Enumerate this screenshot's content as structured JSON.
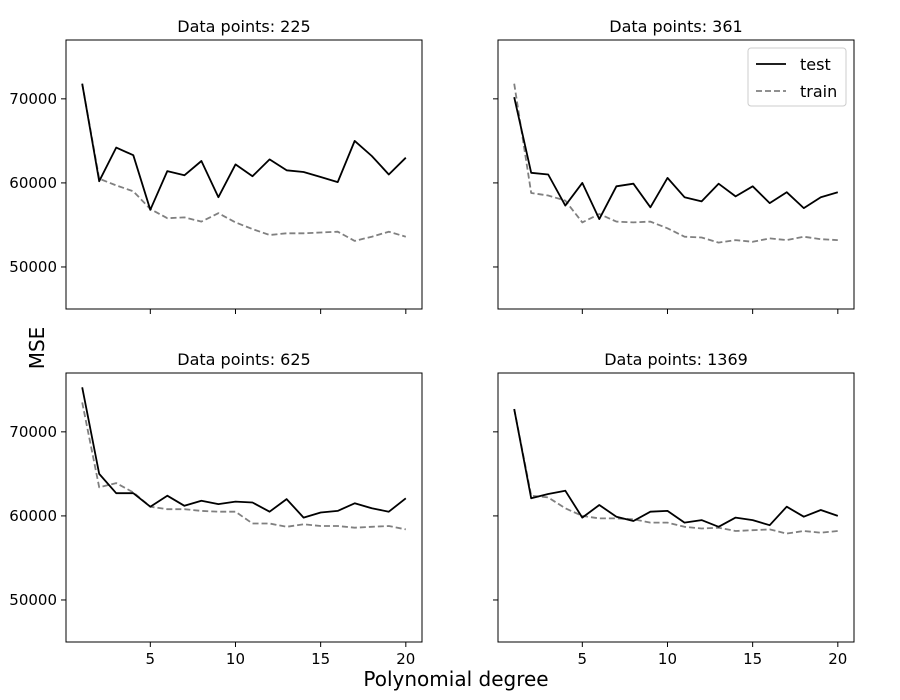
{
  "figure": {
    "xlabel": "Polynomial degree",
    "ylabel": "MSE"
  },
  "chart_data": [
    {
      "type": "line",
      "title": "Data points: 225",
      "x": [
        1,
        2,
        3,
        4,
        5,
        6,
        7,
        8,
        9,
        10,
        11,
        12,
        13,
        14,
        15,
        16,
        17,
        18,
        19,
        20
      ],
      "series": [
        {
          "name": "test",
          "color": "#000000",
          "dash": "solid",
          "values": [
            71800,
            60200,
            64200,
            63300,
            56800,
            61400,
            60900,
            62600,
            58300,
            62200,
            60800,
            62800,
            61500,
            61300,
            60700,
            60100,
            65000,
            63200,
            61000,
            63000
          ]
        },
        {
          "name": "train",
          "color": "#808080",
          "dash": "dashed",
          "values": [
            71800,
            60500,
            59700,
            59000,
            56900,
            55800,
            55900,
            55400,
            56400,
            55300,
            54500,
            53800,
            54000,
            54000,
            54100,
            54200,
            53100,
            53600,
            54200,
            53600
          ]
        }
      ],
      "xlim": [
        0.05,
        20.95
      ],
      "ylim": [
        45000,
        77000
      ],
      "xticks": [
        5,
        10,
        15,
        20
      ],
      "yticks": [
        50000,
        60000,
        70000
      ],
      "show_xticklabels": false,
      "show_yticklabels": true,
      "legend": null
    },
    {
      "type": "line",
      "title": "Data points: 361",
      "x": [
        1,
        2,
        3,
        4,
        5,
        6,
        7,
        8,
        9,
        10,
        11,
        12,
        13,
        14,
        15,
        16,
        17,
        18,
        19,
        20
      ],
      "series": [
        {
          "name": "test",
          "color": "#000000",
          "dash": "solid",
          "values": [
            70200,
            61200,
            61000,
            57300,
            60000,
            55700,
            59600,
            59900,
            57100,
            60600,
            58300,
            57800,
            59900,
            58400,
            59600,
            57600,
            58900,
            57000,
            58300,
            58900
          ]
        },
        {
          "name": "train",
          "color": "#808080",
          "dash": "dashed",
          "values": [
            71800,
            58800,
            58500,
            57900,
            55300,
            56300,
            55400,
            55300,
            55400,
            54600,
            53600,
            53500,
            52900,
            53200,
            53000,
            53400,
            53200,
            53600,
            53300,
            53200
          ]
        }
      ],
      "xlim": [
        0.05,
        20.95
      ],
      "ylim": [
        45000,
        77000
      ],
      "xticks": [
        5,
        10,
        15,
        20
      ],
      "yticks": [
        50000,
        60000,
        70000
      ],
      "show_xticklabels": false,
      "show_yticklabels": false,
      "legend": "top-right"
    },
    {
      "type": "line",
      "title": "Data points: 625",
      "x": [
        1,
        2,
        3,
        4,
        5,
        6,
        7,
        8,
        9,
        10,
        11,
        12,
        13,
        14,
        15,
        16,
        17,
        18,
        19,
        20
      ],
      "series": [
        {
          "name": "test",
          "color": "#000000",
          "dash": "solid",
          "values": [
            75300,
            65000,
            62700,
            62700,
            61100,
            62400,
            61200,
            61800,
            61400,
            61700,
            61600,
            60500,
            62000,
            59800,
            60400,
            60600,
            61500,
            60900,
            60500,
            62100
          ]
        },
        {
          "name": "train",
          "color": "#808080",
          "dash": "dashed",
          "values": [
            73500,
            63400,
            63900,
            62800,
            61100,
            60800,
            60800,
            60600,
            60500,
            60500,
            59100,
            59100,
            58700,
            59000,
            58800,
            58800,
            58600,
            58700,
            58800,
            58400
          ]
        }
      ],
      "xlim": [
        0.05,
        20.95
      ],
      "ylim": [
        45000,
        77000
      ],
      "xticks": [
        5,
        10,
        15,
        20
      ],
      "yticks": [
        50000,
        60000,
        70000
      ],
      "show_xticklabels": true,
      "show_yticklabels": true,
      "legend": null
    },
    {
      "type": "line",
      "title": "Data points: 1369",
      "x": [
        1,
        2,
        3,
        4,
        5,
        6,
        7,
        8,
        9,
        10,
        11,
        12,
        13,
        14,
        15,
        16,
        17,
        18,
        19,
        20
      ],
      "series": [
        {
          "name": "test",
          "color": "#000000",
          "dash": "solid",
          "values": [
            72700,
            62100,
            62600,
            63000,
            59800,
            61300,
            59900,
            59400,
            60500,
            60600,
            59200,
            59500,
            58700,
            59800,
            59500,
            58900,
            61100,
            59900,
            60700,
            60000
          ]
        },
        {
          "name": "train",
          "color": "#808080",
          "dash": "dashed",
          "values": [
            72700,
            62400,
            62200,
            60900,
            60000,
            59700,
            59700,
            59600,
            59200,
            59200,
            58700,
            58500,
            58600,
            58200,
            58300,
            58400,
            57900,
            58200,
            58000,
            58200
          ]
        }
      ],
      "xlim": [
        0.05,
        20.95
      ],
      "ylim": [
        45000,
        77000
      ],
      "xticks": [
        5,
        10,
        15,
        20
      ],
      "yticks": [
        50000,
        60000,
        70000
      ],
      "show_xticklabels": true,
      "show_yticklabels": false,
      "legend": null
    }
  ]
}
